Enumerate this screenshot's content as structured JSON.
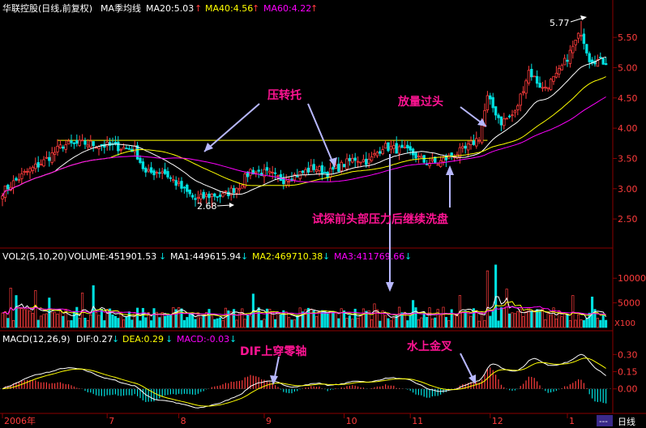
{
  "colors": {
    "bg": "#000000",
    "up": "#ff3c3c",
    "down": "#00e0e0",
    "white": "#ffffff",
    "yellow": "#ffff00",
    "magenta": "#ff00ff",
    "grid": "#8b0000",
    "annot": "#ff1493",
    "arrow": "#b8b8ff"
  },
  "header": {
    "title": "华联控股(日线,前复权)",
    "ma_name": "MA季均线",
    "ma20": "MA20:5.03",
    "ma40": "MA40:4.56",
    "ma60": "MA60:4.22",
    "arrow": "↑"
  },
  "volume_header": {
    "name": "VOL2(5,10,20)",
    "volume": "VOLUME:451901.53",
    "ma1": "MA1:449615.94",
    "ma2": "MA2:469710.38",
    "ma3": "MA3:411769.66",
    "arrow": "↓",
    "unit": "X100"
  },
  "macd_header": {
    "name": "MACD(12,26,9)",
    "dif": "DIF:0.27",
    "dea": "DEA:0.29",
    "macd": "MACD:-0.03",
    "arrow": "↓"
  },
  "annotations": {
    "ya_zhuan_tuo": "压转托",
    "fang_liang": "放量过头",
    "shi_tan": "试探前头部压力后继续洗盘",
    "dif_cross": "DIF上穿零轴",
    "shui_shang": "水上金叉",
    "low_label": "2.68",
    "high_label": "5.77"
  },
  "x_axis": {
    "labels": [
      "2006年",
      "7",
      "8",
      "9",
      "10",
      "11",
      "12",
      "1"
    ],
    "tab_label": "日线"
  },
  "chart_data": [
    {
      "type": "candlestick",
      "title": "华联控股(日线,前复权)",
      "y_ticks": [
        2.5,
        3.0,
        3.5,
        4.0,
        4.5,
        5.0,
        5.5
      ],
      "ylim": [
        2.1,
        5.85
      ],
      "resistance_level": 3.8,
      "low_point": 2.68,
      "high_point": 5.77,
      "close_anchors": [
        [
          0,
          2.95
        ],
        [
          8,
          3.25
        ],
        [
          15,
          3.45
        ],
        [
          22,
          3.72
        ],
        [
          30,
          3.75
        ],
        [
          40,
          3.7
        ],
        [
          48,
          3.65
        ],
        [
          52,
          3.25
        ],
        [
          58,
          3.3
        ],
        [
          64,
          3.05
        ],
        [
          70,
          2.82
        ],
        [
          76,
          2.9
        ],
        [
          80,
          2.88
        ],
        [
          86,
          3.05
        ],
        [
          90,
          3.3
        ],
        [
          96,
          3.25
        ],
        [
          102,
          3.15
        ],
        [
          108,
          3.25
        ],
        [
          113,
          3.35
        ],
        [
          118,
          3.25
        ],
        [
          123,
          3.38
        ],
        [
          128,
          3.5
        ],
        [
          133,
          3.45
        ],
        [
          138,
          3.7
        ],
        [
          143,
          3.65
        ],
        [
          148,
          3.6
        ],
        [
          153,
          3.45
        ],
        [
          158,
          3.42
        ],
        [
          163,
          3.55
        ],
        [
          168,
          3.65
        ],
        [
          173,
          3.85
        ],
        [
          176,
          4.5
        ],
        [
          181,
          4.1
        ],
        [
          186,
          4.25
        ],
        [
          191,
          4.95
        ],
        [
          196,
          4.65
        ],
        [
          201,
          4.85
        ],
        [
          206,
          5.25
        ],
        [
          210,
          5.6
        ],
        [
          213,
          5.15
        ],
        [
          218,
          5.1
        ]
      ],
      "series": [
        {
          "name": "MA20",
          "value": 5.03
        },
        {
          "name": "MA40",
          "value": 4.56
        },
        {
          "name": "MA60",
          "value": 4.22
        }
      ]
    },
    {
      "type": "bar",
      "title": "VOL2(5,10,20)",
      "y_ticks": [
        5000,
        10000
      ],
      "ylim": [
        0,
        13000
      ],
      "unit": "X100",
      "base_level": 2600,
      "spikes": [
        [
          3,
          8000
        ],
        [
          5,
          6500
        ],
        [
          12,
          7500
        ],
        [
          17,
          6000
        ],
        [
          29,
          7000
        ],
        [
          33,
          8500
        ],
        [
          91,
          6800
        ],
        [
          135,
          4800
        ],
        [
          149,
          5500
        ],
        [
          166,
          6500
        ],
        [
          176,
          11500
        ],
        [
          179,
          12700
        ],
        [
          183,
          7800
        ],
        [
          207,
          6500
        ],
        [
          214,
          6200
        ]
      ],
      "series": [
        {
          "name": "VOLUME",
          "value": 451901.53
        },
        {
          "name": "MA1",
          "value": 449615.94
        },
        {
          "name": "MA2",
          "value": 469710.38
        },
        {
          "name": "MA3",
          "value": 411769.66
        }
      ]
    },
    {
      "type": "bar",
      "title": "MACD(12,26,9)",
      "y_ticks": [
        0.0,
        0.15,
        0.3
      ],
      "ylim": [
        -0.2,
        0.38
      ],
      "series": [
        {
          "name": "DIF",
          "value": 0.27
        },
        {
          "name": "DEA",
          "value": 0.29
        },
        {
          "name": "MACD",
          "value": -0.03
        }
      ]
    }
  ]
}
